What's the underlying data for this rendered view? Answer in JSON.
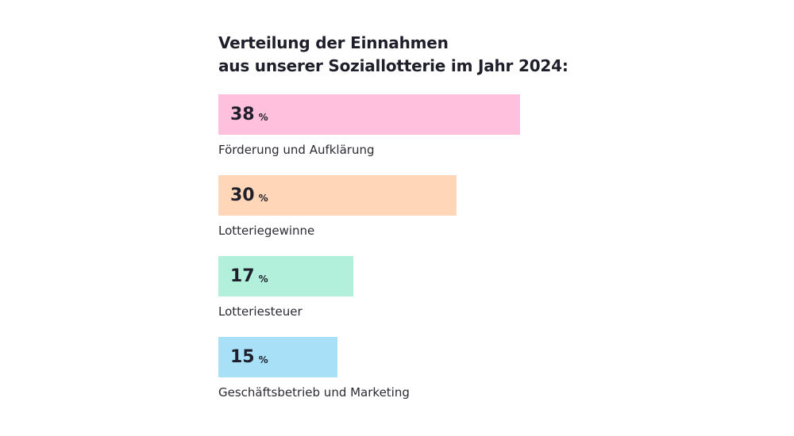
{
  "chart_data": {
    "type": "bar",
    "orientation": "horizontal",
    "title_lines": [
      "Verteilung der Einnahmen",
      "aus unserer Soziallotterie im Jahr 2024:"
    ],
    "unit": "%",
    "categories": [
      "Förderung und Aufklärung",
      "Lotteriegewinne",
      "Lotteriesteuer",
      "Geschäftsbetrieb und Marketing"
    ],
    "values": [
      38,
      30,
      17,
      15
    ],
    "colors": [
      "#ffc0de",
      "#ffd6b8",
      "#b3f0dc",
      "#a8e0f8"
    ],
    "xlim": [
      0,
      100
    ],
    "grid": false,
    "legend": "none"
  }
}
